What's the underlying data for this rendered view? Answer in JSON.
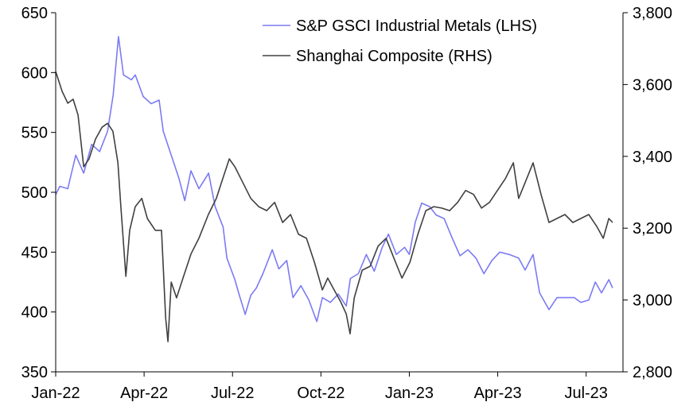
{
  "chart_data": {
    "type": "line",
    "title": "",
    "x_unit": "months since Jan-2022",
    "xlim": [
      0,
      19.25
    ],
    "x_ticks": [
      {
        "t": 0,
        "label": "Jan-22"
      },
      {
        "t": 3,
        "label": "Apr-22"
      },
      {
        "t": 6,
        "label": "Jul-22"
      },
      {
        "t": 9,
        "label": "Oct-22"
      },
      {
        "t": 12,
        "label": "Jan-23"
      },
      {
        "t": 15,
        "label": "Apr-23"
      },
      {
        "t": 18,
        "label": "Jul-23"
      }
    ],
    "left_axis": {
      "ylim": [
        350,
        650
      ],
      "ticks": [
        {
          "v": 650,
          "label": "650"
        },
        {
          "v": 600,
          "label": "600"
        },
        {
          "v": 550,
          "label": "550"
        },
        {
          "v": 500,
          "label": "500"
        },
        {
          "v": 450,
          "label": "450"
        },
        {
          "v": 400,
          "label": "400"
        },
        {
          "v": 350,
          "label": "350"
        }
      ]
    },
    "right_axis": {
      "ylim": [
        2800,
        3800
      ],
      "ticks": [
        {
          "v": 3800,
          "label": "3,800"
        },
        {
          "v": 3600,
          "label": "3,600"
        },
        {
          "v": 3400,
          "label": "3,400"
        },
        {
          "v": 3200,
          "label": "3,200"
        },
        {
          "v": 3000,
          "label": "3,000"
        },
        {
          "v": 2800,
          "label": "2,800"
        }
      ]
    },
    "legend_position": "top-right",
    "series": [
      {
        "name": "S&P GSCI Industrial Metals (LHS)",
        "axis": "left",
        "color": "#7b7bf4",
        "points": [
          [
            0,
            498
          ],
          [
            0.14,
            505
          ],
          [
            0.41,
            503
          ],
          [
            0.68,
            531
          ],
          [
            0.95,
            516
          ],
          [
            1.22,
            540
          ],
          [
            1.49,
            534
          ],
          [
            1.76,
            551
          ],
          [
            1.95,
            581
          ],
          [
            2.13,
            630
          ],
          [
            2.3,
            598
          ],
          [
            2.57,
            594
          ],
          [
            2.7,
            598
          ],
          [
            2.97,
            580
          ],
          [
            3.24,
            574
          ],
          [
            3.51,
            577
          ],
          [
            3.65,
            551
          ],
          [
            3.92,
            531
          ],
          [
            4.19,
            511
          ],
          [
            4.38,
            493
          ],
          [
            4.59,
            518
          ],
          [
            4.86,
            503
          ],
          [
            5.19,
            516
          ],
          [
            5.41,
            488
          ],
          [
            5.68,
            471
          ],
          [
            5.81,
            445
          ],
          [
            6.08,
            427
          ],
          [
            6.22,
            415
          ],
          [
            6.43,
            398
          ],
          [
            6.62,
            414
          ],
          [
            6.81,
            420
          ],
          [
            7.03,
            432
          ],
          [
            7.35,
            452
          ],
          [
            7.57,
            436
          ],
          [
            7.84,
            443
          ],
          [
            8.05,
            412
          ],
          [
            8.32,
            422
          ],
          [
            8.59,
            410
          ],
          [
            8.86,
            392
          ],
          [
            9.05,
            412
          ],
          [
            9.32,
            408
          ],
          [
            9.59,
            415
          ],
          [
            9.86,
            405
          ],
          [
            10.0,
            428
          ],
          [
            10.27,
            432
          ],
          [
            10.54,
            448
          ],
          [
            10.81,
            434
          ],
          [
            11.08,
            454
          ],
          [
            11.29,
            465
          ],
          [
            11.56,
            448
          ],
          [
            11.84,
            454
          ],
          [
            12.0,
            448
          ],
          [
            12.2,
            475
          ],
          [
            12.42,
            491
          ],
          [
            12.69,
            488
          ],
          [
            12.91,
            481
          ],
          [
            13.18,
            478
          ],
          [
            13.45,
            462
          ],
          [
            13.72,
            447
          ],
          [
            13.99,
            452
          ],
          [
            14.26,
            445
          ],
          [
            14.53,
            432
          ],
          [
            14.8,
            443
          ],
          [
            15.07,
            450
          ],
          [
            15.39,
            448
          ],
          [
            15.71,
            445
          ],
          [
            15.93,
            435
          ],
          [
            16.2,
            448
          ],
          [
            16.42,
            416
          ],
          [
            16.74,
            402
          ],
          [
            17.01,
            412
          ],
          [
            17.33,
            412
          ],
          [
            17.6,
            412
          ],
          [
            17.82,
            408
          ],
          [
            18.09,
            410
          ],
          [
            18.31,
            425
          ],
          [
            18.52,
            416
          ],
          [
            18.77,
            427
          ],
          [
            18.9,
            420
          ]
        ]
      },
      {
        "name": "Shanghai Composite (RHS)",
        "axis": "right",
        "color": "#404040",
        "points": [
          [
            0,
            3636
          ],
          [
            0.22,
            3581
          ],
          [
            0.41,
            3548
          ],
          [
            0.59,
            3559
          ],
          [
            0.76,
            3515
          ],
          [
            0.95,
            3371
          ],
          [
            1.13,
            3393
          ],
          [
            1.35,
            3448
          ],
          [
            1.57,
            3481
          ],
          [
            1.76,
            3492
          ],
          [
            1.94,
            3470
          ],
          [
            2.11,
            3382
          ],
          [
            2.21,
            3260
          ],
          [
            2.38,
            3066
          ],
          [
            2.51,
            3194
          ],
          [
            2.7,
            3260
          ],
          [
            2.92,
            3283
          ],
          [
            3.11,
            3227
          ],
          [
            3.38,
            3194
          ],
          [
            3.59,
            3194
          ],
          [
            3.73,
            2950
          ],
          [
            3.81,
            2884
          ],
          [
            3.92,
            3050
          ],
          [
            4.1,
            3006
          ],
          [
            4.32,
            3061
          ],
          [
            4.59,
            3128
          ],
          [
            4.86,
            3172
          ],
          [
            5.18,
            3238
          ],
          [
            5.45,
            3283
          ],
          [
            5.67,
            3338
          ],
          [
            5.89,
            3393
          ],
          [
            6.08,
            3371
          ],
          [
            6.35,
            3327
          ],
          [
            6.62,
            3283
          ],
          [
            6.89,
            3260
          ],
          [
            7.16,
            3249
          ],
          [
            7.43,
            3272
          ],
          [
            7.7,
            3216
          ],
          [
            7.97,
            3238
          ],
          [
            8.24,
            3183
          ],
          [
            8.51,
            3172
          ],
          [
            8.78,
            3105
          ],
          [
            9.05,
            3028
          ],
          [
            9.23,
            3061
          ],
          [
            9.45,
            3028
          ],
          [
            9.67,
            2995
          ],
          [
            9.86,
            2961
          ],
          [
            9.99,
            2906
          ],
          [
            10.13,
            3006
          ],
          [
            10.4,
            3083
          ],
          [
            10.67,
            3094
          ],
          [
            10.94,
            3150
          ],
          [
            11.21,
            3172
          ],
          [
            11.48,
            3116
          ],
          [
            11.75,
            3061
          ],
          [
            12.02,
            3105
          ],
          [
            12.29,
            3183
          ],
          [
            12.56,
            3249
          ],
          [
            12.83,
            3260
          ],
          [
            13.1,
            3256
          ],
          [
            13.37,
            3249
          ],
          [
            13.64,
            3272
          ],
          [
            13.91,
            3305
          ],
          [
            14.18,
            3294
          ],
          [
            14.45,
            3256
          ],
          [
            14.72,
            3272
          ],
          [
            14.99,
            3305
          ],
          [
            15.26,
            3338
          ],
          [
            15.53,
            3382
          ],
          [
            15.71,
            3283
          ],
          [
            15.93,
            3327
          ],
          [
            16.2,
            3382
          ],
          [
            16.47,
            3294
          ],
          [
            16.74,
            3216
          ],
          [
            17.01,
            3227
          ],
          [
            17.28,
            3238
          ],
          [
            17.55,
            3216
          ],
          [
            17.82,
            3227
          ],
          [
            18.09,
            3238
          ],
          [
            18.36,
            3205
          ],
          [
            18.58,
            3172
          ],
          [
            18.77,
            3227
          ],
          [
            18.9,
            3216
          ]
        ]
      }
    ]
  }
}
